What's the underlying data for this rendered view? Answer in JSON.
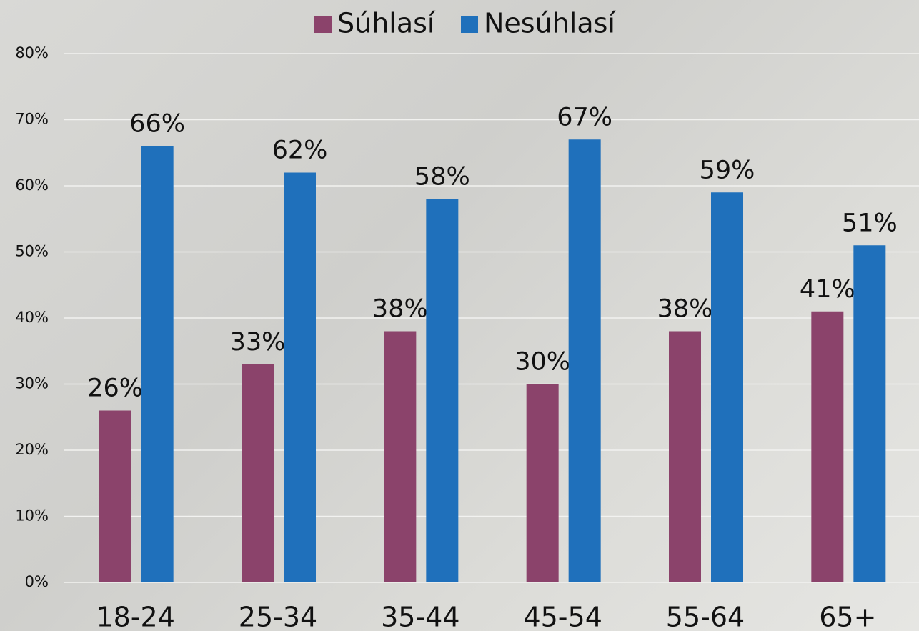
{
  "chart_data": {
    "type": "bar",
    "categories": [
      "18-24",
      "25-34",
      "35-44",
      "45-54",
      "55-64",
      "65+"
    ],
    "series": [
      {
        "name": "Súhlasí",
        "color": "#8b436b",
        "values": [
          26,
          33,
          38,
          30,
          38,
          41
        ],
        "value_labels": [
          "26%",
          "33%",
          "38%",
          "30%",
          "38%",
          "41%"
        ]
      },
      {
        "name": "Nesúhlasí",
        "color": "#1f70bb",
        "values": [
          66,
          62,
          58,
          67,
          59,
          51
        ],
        "value_labels": [
          "66%",
          "62%",
          "58%",
          "67%",
          "59%",
          "51%"
        ]
      }
    ],
    "ylim": [
      0,
      80
    ],
    "yticks": [
      {
        "value": 0,
        "label": "0%"
      },
      {
        "value": 10,
        "label": "10%"
      },
      {
        "value": 20,
        "label": "20%"
      },
      {
        "value": 30,
        "label": "30%"
      },
      {
        "value": 40,
        "label": "40%"
      },
      {
        "value": 50,
        "label": "50%"
      },
      {
        "value": 60,
        "label": "60%"
      },
      {
        "value": 70,
        "label": "70%"
      },
      {
        "value": 80,
        "label": "80%"
      }
    ],
    "grid": true,
    "legend": "top"
  }
}
